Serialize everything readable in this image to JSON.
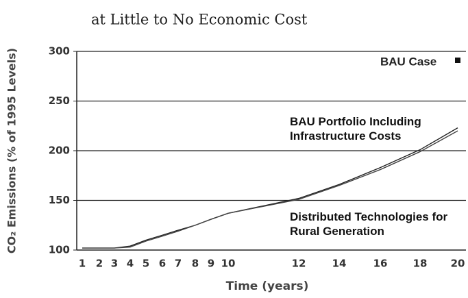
{
  "chart_data": {
    "type": "line",
    "title": "at Little to No Economic Cost",
    "y_label": "CO₂ Emissions (% of 1995 Levels)",
    "x_label": "Time (years)",
    "categories": [
      "1",
      "2",
      "3",
      "4",
      "5",
      "6",
      "7",
      "8",
      "9",
      "10",
      "12",
      "14",
      "16",
      "18",
      "20"
    ],
    "series": [
      {
        "name": "BAU Portfolio Including Infrastructure Costs",
        "color": "#222222",
        "values": [
          102,
          102,
          102,
          104,
          110,
          115,
          120,
          125,
          131,
          137,
          152,
          166,
          183,
          201,
          223
        ]
      },
      {
        "name": "Distributed Technologies for Rural Generation",
        "color": "#444444",
        "values": [
          102,
          102,
          102,
          103,
          109,
          114,
          119,
          125,
          131,
          137,
          151,
          165,
          181,
          199,
          220
        ]
      }
    ],
    "annotations": [
      "BAU Case"
    ],
    "ylim": [
      100,
      300
    ],
    "yticks": [
      100,
      150,
      200,
      250,
      300
    ],
    "grid": true
  }
}
